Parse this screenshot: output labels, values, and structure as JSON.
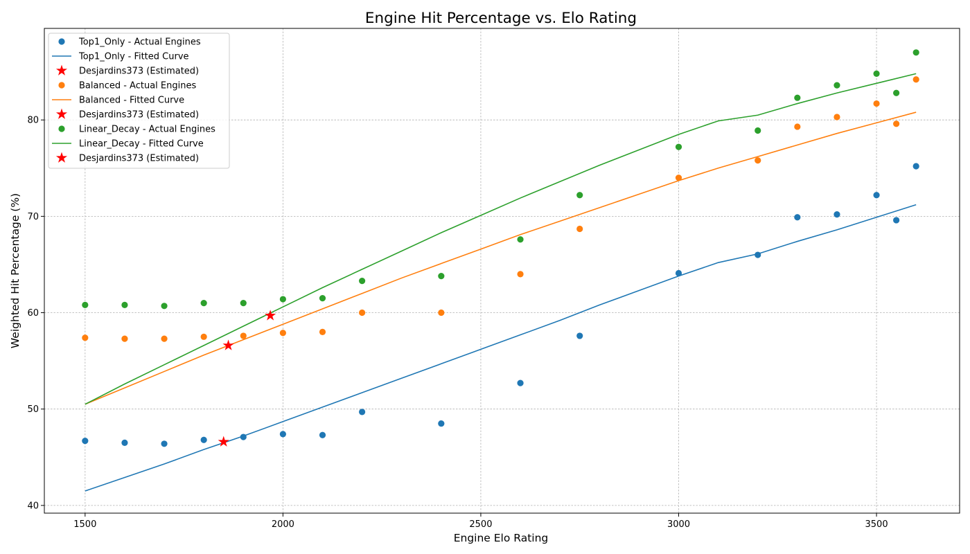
{
  "chart_data": {
    "type": "scatter",
    "title": "Engine Hit Percentage vs. Elo Rating",
    "xlabel": "Engine Elo Rating",
    "ylabel": "Weighted Hit Percentage (%)",
    "xlim": [
      1397,
      3710
    ],
    "ylim": [
      39.2,
      89.5
    ],
    "xticks": [
      1500,
      2000,
      2500,
      3000,
      3500
    ],
    "yticks": [
      40,
      50,
      60,
      70,
      80
    ],
    "grid": true,
    "legend_position": "top-left",
    "series": [
      {
        "name": "Top1_Only - Actual Engines",
        "kind": "scatter",
        "color": "#1f77b4",
        "x": [
          1500,
          1600,
          1700,
          1800,
          1900,
          2000,
          2100,
          2200,
          2400,
          2600,
          2750,
          3000,
          3200,
          3300,
          3400,
          3500,
          3550,
          3600
        ],
        "y": [
          46.7,
          46.5,
          46.4,
          46.8,
          47.1,
          47.4,
          47.3,
          49.7,
          48.5,
          52.7,
          57.6,
          64.1,
          66.0,
          69.9,
          70.2,
          72.2,
          69.6,
          75.2
        ]
      },
      {
        "name": "Top1_Only - Fitted Curve",
        "kind": "line",
        "color": "#1f77b4",
        "x": [
          1500,
          1600,
          1700,
          1800,
          1900,
          2000,
          2100,
          2200,
          2300,
          2400,
          2500,
          2600,
          2700,
          2800,
          2900,
          3000,
          3100,
          3200,
          3300,
          3400,
          3500,
          3600
        ],
        "y": [
          41.5,
          42.9,
          44.3,
          45.8,
          47.2,
          48.7,
          50.2,
          51.7,
          53.2,
          54.7,
          56.2,
          57.7,
          59.2,
          60.8,
          62.3,
          63.8,
          65.2,
          66.1,
          67.4,
          68.6,
          69.9,
          71.2
        ]
      },
      {
        "name": "Desjardins373 (Estimated)",
        "kind": "star",
        "color": "#ff0000",
        "x": [
          1850
        ],
        "y": [
          46.6
        ]
      },
      {
        "name": "Balanced - Actual Engines",
        "kind": "scatter",
        "color": "#ff7f0e",
        "x": [
          1500,
          1600,
          1700,
          1800,
          1900,
          2000,
          2100,
          2200,
          2400,
          2600,
          2750,
          3000,
          3200,
          3300,
          3400,
          3500,
          3550,
          3600
        ],
        "y": [
          57.4,
          57.3,
          57.3,
          57.5,
          57.6,
          57.9,
          58.0,
          60.0,
          60.0,
          64.0,
          68.7,
          74.0,
          75.8,
          79.3,
          80.3,
          81.7,
          79.6,
          84.2
        ]
      },
      {
        "name": "Balanced - Fitted Curve",
        "kind": "line",
        "color": "#ff7f0e",
        "x": [
          1500,
          1600,
          1700,
          1800,
          1900,
          2000,
          2100,
          2200,
          2300,
          2400,
          2500,
          2600,
          2700,
          2800,
          2900,
          3000,
          3100,
          3200,
          3300,
          3400,
          3500,
          3600
        ],
        "y": [
          50.5,
          52.2,
          53.9,
          55.6,
          57.2,
          58.8,
          60.4,
          62.0,
          63.6,
          65.1,
          66.6,
          68.1,
          69.5,
          70.9,
          72.3,
          73.7,
          75.0,
          76.2,
          77.4,
          78.6,
          79.7,
          80.8
        ]
      },
      {
        "name": "Desjardins373 (Estimated)",
        "kind": "star",
        "color": "#ff0000",
        "x": [
          1862
        ],
        "y": [
          56.6
        ]
      },
      {
        "name": "Linear_Decay - Actual Engines",
        "kind": "scatter",
        "color": "#2ca02c",
        "x": [
          1500,
          1600,
          1700,
          1800,
          1900,
          2000,
          2100,
          2200,
          2400,
          2600,
          2750,
          3000,
          3200,
          3300,
          3400,
          3500,
          3550,
          3600
        ],
        "y": [
          60.8,
          60.8,
          60.7,
          61.0,
          61.0,
          61.4,
          61.5,
          63.3,
          63.8,
          67.6,
          72.2,
          77.2,
          78.9,
          82.3,
          83.6,
          84.8,
          82.8,
          87.0
        ]
      },
      {
        "name": "Linear_Decay - Fitted Curve",
        "kind": "line",
        "color": "#2ca02c",
        "x": [
          1500,
          1600,
          1700,
          1800,
          1900,
          2000,
          2100,
          2200,
          2300,
          2400,
          2500,
          2600,
          2700,
          2800,
          2900,
          3000,
          3100,
          3200,
          3300,
          3400,
          3500,
          3600
        ],
        "y": [
          50.5,
          52.6,
          54.6,
          56.6,
          58.6,
          60.6,
          62.6,
          64.5,
          66.4,
          68.3,
          70.1,
          71.9,
          73.6,
          75.3,
          76.9,
          78.5,
          79.9,
          80.5,
          81.7,
          82.8,
          83.8,
          84.8
        ]
      },
      {
        "name": "Desjardins373 (Estimated)",
        "kind": "star",
        "color": "#ff0000",
        "x": [
          1968
        ],
        "y": [
          59.7
        ]
      }
    ]
  }
}
